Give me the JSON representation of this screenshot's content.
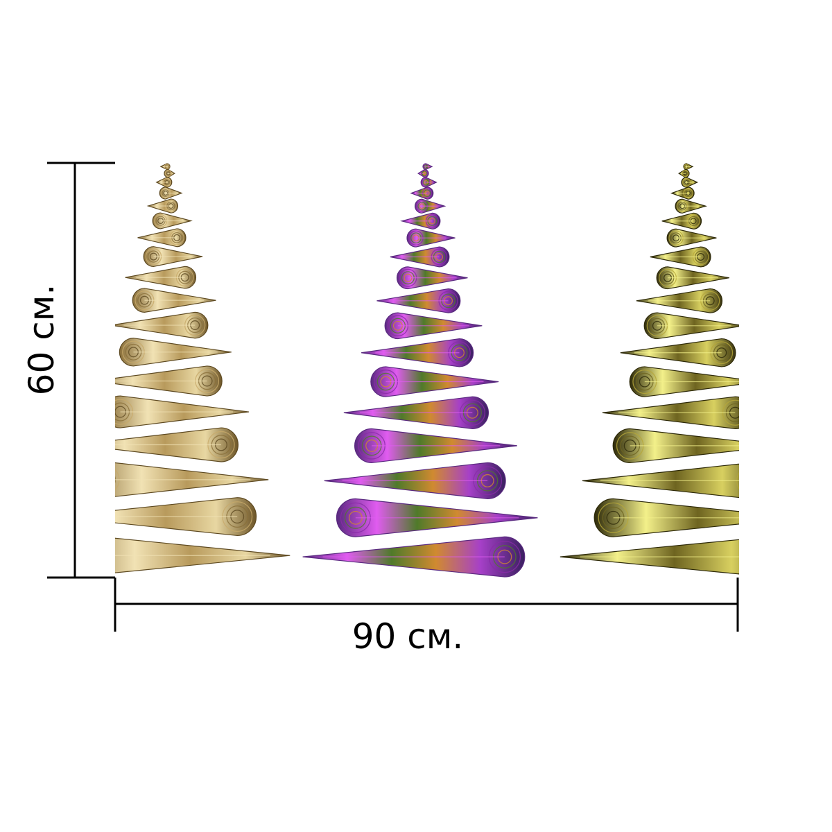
{
  "dimensions": {
    "width_label": "90 см.",
    "height_label": "60 см."
  },
  "artwork": {
    "trees": [
      {
        "name": "gold-tree",
        "palette": [
          "#f1e2b4",
          "#c8aa6a",
          "#8a6f3a",
          "#5e4a22"
        ]
      },
      {
        "name": "iridescent-tree",
        "palette": [
          "#e05cf0",
          "#8a2aa8",
          "#4f7a2a",
          "#d08a30",
          "#5a2a80"
        ]
      },
      {
        "name": "olive-tree",
        "palette": [
          "#f3f08a",
          "#b7a83a",
          "#6e6420",
          "#2e2a0a"
        ]
      }
    ]
  },
  "colors": {
    "background": "#ffffff",
    "dimension_lines": "#000000"
  }
}
